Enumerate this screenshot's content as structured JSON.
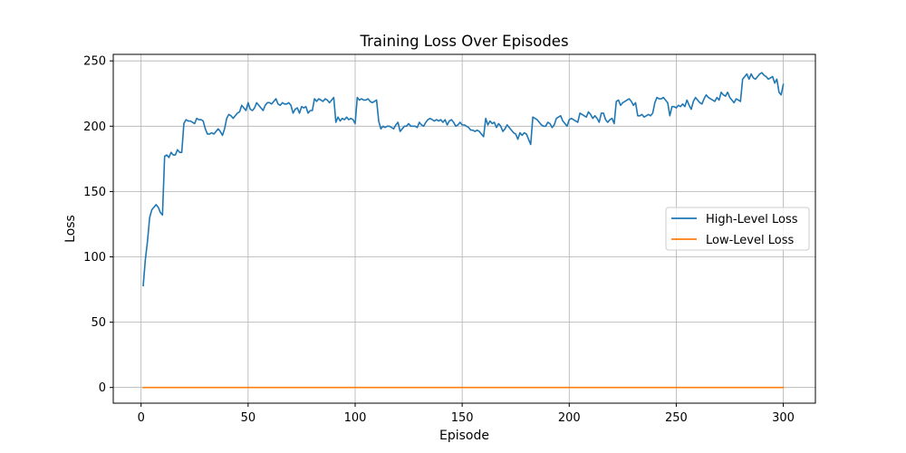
{
  "chart_data": {
    "type": "line",
    "title": "Training Loss Over Episodes",
    "xlabel": "Episode",
    "ylabel": "Loss",
    "xlim": [
      -13,
      315
    ],
    "ylim": [
      -12,
      255
    ],
    "x_ticks": [
      0,
      50,
      100,
      150,
      200,
      250,
      300
    ],
    "y_ticks": [
      0,
      50,
      100,
      150,
      200,
      250
    ],
    "grid": true,
    "legend_position": "center-right",
    "x": [
      1,
      300
    ],
    "series": [
      {
        "name": "High-Level Loss",
        "color": "#1f77b4",
        "points": [
          [
            1,
            78
          ],
          [
            2,
            98
          ],
          [
            3,
            112
          ],
          [
            4,
            130
          ],
          [
            5,
            136
          ],
          [
            6,
            138
          ],
          [
            7,
            140
          ],
          [
            8,
            138
          ],
          [
            9,
            134
          ],
          [
            10,
            132
          ],
          [
            11,
            177
          ],
          [
            12,
            178
          ],
          [
            13,
            176
          ],
          [
            14,
            180
          ],
          [
            15,
            178
          ],
          [
            16,
            178
          ],
          [
            17,
            182
          ],
          [
            18,
            180
          ],
          [
            19,
            180
          ],
          [
            20,
            202
          ],
          [
            21,
            205
          ],
          [
            22,
            204
          ],
          [
            23,
            204
          ],
          [
            24,
            203
          ],
          [
            25,
            202
          ],
          [
            26,
            206
          ],
          [
            27,
            205
          ],
          [
            28,
            205
          ],
          [
            29,
            204
          ],
          [
            30,
            198
          ],
          [
            31,
            194
          ],
          [
            32,
            194
          ],
          [
            33,
            195
          ],
          [
            34,
            194
          ],
          [
            35,
            196
          ],
          [
            36,
            198
          ],
          [
            37,
            196
          ],
          [
            38,
            193
          ],
          [
            39,
            198
          ],
          [
            40,
            206
          ],
          [
            41,
            209
          ],
          [
            42,
            208
          ],
          [
            43,
            206
          ],
          [
            44,
            208
          ],
          [
            45,
            210
          ],
          [
            46,
            211
          ],
          [
            47,
            216
          ],
          [
            48,
            214
          ],
          [
            49,
            212
          ],
          [
            50,
            218
          ],
          [
            51,
            213
          ],
          [
            52,
            212
          ],
          [
            53,
            214
          ],
          [
            54,
            218
          ],
          [
            55,
            216
          ],
          [
            56,
            214
          ],
          [
            57,
            212
          ],
          [
            58,
            216
          ],
          [
            59,
            218
          ],
          [
            60,
            218
          ],
          [
            61,
            217
          ],
          [
            62,
            219
          ],
          [
            63,
            221
          ],
          [
            64,
            217
          ],
          [
            65,
            216
          ],
          [
            66,
            218
          ],
          [
            67,
            217
          ],
          [
            68,
            217
          ],
          [
            69,
            218
          ],
          [
            70,
            216
          ],
          [
            71,
            210
          ],
          [
            72,
            213
          ],
          [
            73,
            214
          ],
          [
            74,
            210
          ],
          [
            75,
            215
          ],
          [
            76,
            214
          ],
          [
            77,
            215
          ],
          [
            78,
            210
          ],
          [
            79,
            212
          ],
          [
            80,
            212
          ],
          [
            81,
            221
          ],
          [
            82,
            219
          ],
          [
            83,
            221
          ],
          [
            84,
            220
          ],
          [
            85,
            219
          ],
          [
            86,
            221
          ],
          [
            87,
            220
          ],
          [
            88,
            218
          ],
          [
            89,
            220
          ],
          [
            90,
            222
          ],
          [
            91,
            203
          ],
          [
            92,
            207
          ],
          [
            93,
            204
          ],
          [
            94,
            206
          ],
          [
            95,
            205
          ],
          [
            96,
            207
          ],
          [
            97,
            205
          ],
          [
            98,
            206
          ],
          [
            99,
            205
          ],
          [
            100,
            202
          ],
          [
            101,
            222
          ],
          [
            102,
            220
          ],
          [
            103,
            221
          ],
          [
            104,
            220
          ],
          [
            105,
            220
          ],
          [
            106,
            221
          ],
          [
            107,
            219
          ],
          [
            108,
            218
          ],
          [
            109,
            219
          ],
          [
            110,
            220
          ],
          [
            111,
            204
          ],
          [
            112,
            198
          ],
          [
            113,
            200
          ],
          [
            114,
            199
          ],
          [
            115,
            200
          ],
          [
            116,
            200
          ],
          [
            117,
            199
          ],
          [
            118,
            198
          ],
          [
            119,
            201
          ],
          [
            120,
            203
          ],
          [
            121,
            196
          ],
          [
            122,
            198
          ],
          [
            123,
            200
          ],
          [
            124,
            200
          ],
          [
            125,
            202
          ],
          [
            126,
            200
          ],
          [
            127,
            200
          ],
          [
            128,
            200
          ],
          [
            129,
            199
          ],
          [
            130,
            203
          ],
          [
            131,
            201
          ],
          [
            132,
            200
          ],
          [
            133,
            203
          ],
          [
            134,
            205
          ],
          [
            135,
            206
          ],
          [
            136,
            205
          ],
          [
            137,
            204
          ],
          [
            138,
            205
          ],
          [
            139,
            204
          ],
          [
            140,
            205
          ],
          [
            141,
            203
          ],
          [
            142,
            205
          ],
          [
            143,
            201
          ],
          [
            144,
            204
          ],
          [
            145,
            205
          ],
          [
            146,
            203
          ],
          [
            147,
            200
          ],
          [
            148,
            201
          ],
          [
            149,
            203
          ],
          [
            150,
            201
          ],
          [
            151,
            201
          ],
          [
            152,
            200
          ],
          [
            153,
            199
          ],
          [
            154,
            197
          ],
          [
            155,
            197
          ],
          [
            156,
            196
          ],
          [
            157,
            197
          ],
          [
            158,
            196
          ],
          [
            159,
            194
          ],
          [
            160,
            192
          ],
          [
            161,
            206
          ],
          [
            162,
            201
          ],
          [
            163,
            204
          ],
          [
            164,
            202
          ],
          [
            165,
            203
          ],
          [
            166,
            199
          ],
          [
            167,
            202
          ],
          [
            168,
            200
          ],
          [
            169,
            196
          ],
          [
            170,
            198
          ],
          [
            171,
            201
          ],
          [
            172,
            199
          ],
          [
            173,
            197
          ],
          [
            174,
            195
          ],
          [
            175,
            194
          ],
          [
            176,
            190
          ],
          [
            177,
            195
          ],
          [
            178,
            193
          ],
          [
            179,
            195
          ],
          [
            180,
            194
          ],
          [
            181,
            190
          ],
          [
            182,
            186
          ],
          [
            183,
            207
          ],
          [
            184,
            206
          ],
          [
            185,
            205
          ],
          [
            186,
            203
          ],
          [
            187,
            201
          ],
          [
            188,
            200
          ],
          [
            189,
            200
          ],
          [
            190,
            203
          ],
          [
            191,
            202
          ],
          [
            192,
            199
          ],
          [
            193,
            201
          ],
          [
            194,
            206
          ],
          [
            195,
            207
          ],
          [
            196,
            208
          ],
          [
            197,
            204
          ],
          [
            198,
            202
          ],
          [
            199,
            200
          ],
          [
            200,
            205
          ],
          [
            201,
            206
          ],
          [
            202,
            205
          ],
          [
            203,
            204
          ],
          [
            204,
            203
          ],
          [
            205,
            210
          ],
          [
            206,
            209
          ],
          [
            207,
            208
          ],
          [
            208,
            207
          ],
          [
            209,
            211
          ],
          [
            210,
            209
          ],
          [
            211,
            206
          ],
          [
            212,
            208
          ],
          [
            213,
            206
          ],
          [
            214,
            203
          ],
          [
            215,
            210
          ],
          [
            216,
            210
          ],
          [
            217,
            205
          ],
          [
            218,
            203
          ],
          [
            219,
            205
          ],
          [
            220,
            206
          ],
          [
            221,
            202
          ],
          [
            222,
            219
          ],
          [
            223,
            220
          ],
          [
            224,
            216
          ],
          [
            225,
            218
          ],
          [
            226,
            219
          ],
          [
            227,
            220
          ],
          [
            228,
            221
          ],
          [
            229,
            219
          ],
          [
            230,
            216
          ],
          [
            231,
            218
          ],
          [
            232,
            208
          ],
          [
            233,
            208
          ],
          [
            234,
            209
          ],
          [
            235,
            207
          ],
          [
            236,
            208
          ],
          [
            237,
            209
          ],
          [
            238,
            208
          ],
          [
            239,
            210
          ],
          [
            240,
            218
          ],
          [
            241,
            222
          ],
          [
            242,
            221
          ],
          [
            243,
            221
          ],
          [
            244,
            222
          ],
          [
            245,
            220
          ],
          [
            246,
            218
          ],
          [
            247,
            208
          ],
          [
            248,
            215
          ],
          [
            249,
            215
          ],
          [
            250,
            214
          ],
          [
            251,
            216
          ],
          [
            252,
            215
          ],
          [
            253,
            217
          ],
          [
            254,
            215
          ],
          [
            255,
            220
          ],
          [
            256,
            216
          ],
          [
            257,
            213
          ],
          [
            258,
            219
          ],
          [
            259,
            222
          ],
          [
            260,
            220
          ],
          [
            261,
            218
          ],
          [
            262,
            217
          ],
          [
            263,
            221
          ],
          [
            264,
            224
          ],
          [
            265,
            222
          ],
          [
            266,
            221
          ],
          [
            267,
            220
          ],
          [
            268,
            219
          ],
          [
            269,
            222
          ],
          [
            270,
            220
          ],
          [
            271,
            226
          ],
          [
            272,
            224
          ],
          [
            273,
            223
          ],
          [
            274,
            226
          ],
          [
            275,
            222
          ],
          [
            276,
            220
          ],
          [
            277,
            218
          ],
          [
            278,
            221
          ],
          [
            279,
            220
          ],
          [
            280,
            219
          ],
          [
            281,
            236
          ],
          [
            282,
            238
          ],
          [
            283,
            240
          ],
          [
            284,
            236
          ],
          [
            285,
            240
          ],
          [
            286,
            237
          ],
          [
            287,
            236
          ],
          [
            288,
            238
          ],
          [
            289,
            240
          ],
          [
            290,
            241
          ],
          [
            291,
            239
          ],
          [
            292,
            238
          ],
          [
            293,
            236
          ],
          [
            294,
            237
          ],
          [
            295,
            238
          ],
          [
            296,
            233
          ],
          [
            297,
            236
          ],
          [
            298,
            226
          ],
          [
            299,
            224
          ],
          [
            300,
            232
          ]
        ]
      },
      {
        "name": "Low-Level Loss",
        "color": "#ff7f0e",
        "points": [
          [
            1,
            0
          ],
          [
            300,
            0
          ]
        ]
      }
    ]
  }
}
